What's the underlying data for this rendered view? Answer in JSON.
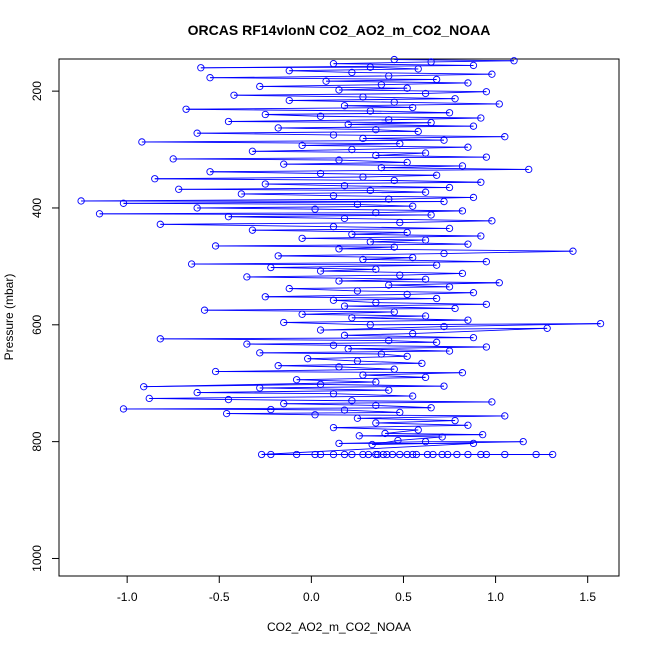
{
  "chart_data": {
    "type": "scatter",
    "style": "points-connected-by-lines",
    "title": "ORCAS RF14vlonN CO2_AO2_m_CO2_NOAA",
    "xlabel": "CO2_AO2_m_CO2_NOAA",
    "ylabel": "Pressure (mbar)",
    "xlim": [
      -1.37,
      1.67
    ],
    "ylim": [
      1030,
      145
    ],
    "y_reversed": true,
    "x_ticks": [
      -1.0,
      -0.5,
      0.0,
      0.5,
      1.0,
      1.5
    ],
    "x_tick_labels": [
      "-1.0",
      "-0.5",
      "0.0",
      "0.5",
      "1.0",
      "1.5"
    ],
    "y_ticks": [
      200,
      400,
      600,
      800,
      1000
    ],
    "y_tick_labels": [
      "200",
      "400",
      "600",
      "800",
      "1000"
    ],
    "grid": false,
    "legend": "none",
    "color": "#0000ff",
    "marker": "open-circle",
    "series": [
      {
        "points": [
          [
            0.35,
            822
          ],
          [
            0.52,
            822
          ],
          [
            0.18,
            822
          ],
          [
            0.71,
            822
          ],
          [
            0.44,
            822
          ],
          [
            0.92,
            822
          ],
          [
            0.05,
            822
          ],
          [
            0.63,
            822
          ],
          [
            0.28,
            822
          ],
          [
            1.05,
            822
          ],
          [
            -0.22,
            822
          ],
          [
            0.39,
            822
          ],
          [
            0.85,
            822
          ],
          [
            0.12,
            822
          ],
          [
            0.57,
            822
          ],
          [
            1.22,
            822
          ],
          [
            0.31,
            822
          ],
          [
            0.74,
            822
          ],
          [
            -0.08,
            822
          ],
          [
            0.48,
            822
          ],
          [
            0.95,
            822
          ],
          [
            0.22,
            822
          ],
          [
            0.66,
            822
          ],
          [
            1.31,
            822
          ],
          [
            0.41,
            822
          ],
          [
            0.02,
            822
          ],
          [
            0.79,
            822
          ],
          [
            0.36,
            822
          ],
          [
            0.55,
            822
          ],
          [
            -0.27,
            822
          ],
          [
            0.88,
            803
          ],
          [
            0.15,
            803
          ],
          [
            0.62,
            800
          ],
          [
            1.15,
            800
          ],
          [
            0.33,
            805
          ],
          [
            0.47,
            798
          ],
          [
            0.71,
            792
          ],
          [
            0.26,
            790
          ],
          [
            0.93,
            788
          ],
          [
            0.4,
            786
          ],
          [
            0.58,
            780
          ],
          [
            0.12,
            776
          ],
          [
            0.85,
            772
          ],
          [
            0.35,
            768
          ],
          [
            0.78,
            764
          ],
          [
            0.25,
            760
          ],
          [
            1.05,
            756
          ],
          [
            0.02,
            754
          ],
          [
            -0.46,
            752
          ],
          [
            0.48,
            750
          ],
          [
            0.18,
            746
          ],
          [
            -0.22,
            745
          ],
          [
            -1.02,
            744
          ],
          [
            0.65,
            742
          ],
          [
            0.35,
            738
          ],
          [
            -0.15,
            735
          ],
          [
            0.98,
            732
          ],
          [
            0.22,
            730
          ],
          [
            -0.45,
            728
          ],
          [
            -0.88,
            726
          ],
          [
            0.55,
            722
          ],
          [
            0.12,
            718
          ],
          [
            -0.62,
            716
          ],
          [
            0.42,
            712
          ],
          [
            -0.28,
            708
          ],
          [
            0.72,
            705
          ],
          [
            0.05,
            702
          ],
          [
            -0.91,
            706
          ],
          [
            0.35,
            698
          ],
          [
            -0.08,
            694
          ],
          [
            0.62,
            690
          ],
          [
            0.28,
            686
          ],
          [
            0.82,
            682
          ],
          [
            -0.52,
            680
          ],
          [
            0.45,
            676
          ],
          [
            0.15,
            672
          ],
          [
            -0.18,
            670
          ],
          [
            0.6,
            666
          ],
          [
            0.25,
            662
          ],
          [
            -0.02,
            658
          ],
          [
            0.52,
            654
          ],
          [
            0.38,
            650
          ],
          [
            -0.28,
            648
          ],
          [
            0.75,
            645
          ],
          [
            0.2,
            641
          ],
          [
            0.95,
            638
          ],
          [
            0.12,
            635
          ],
          [
            -0.35,
            633
          ],
          [
            0.68,
            630
          ],
          [
            0.42,
            627
          ],
          [
            -0.82,
            624
          ],
          [
            0.88,
            622
          ],
          [
            0.18,
            618
          ],
          [
            0.55,
            615
          ],
          [
            1.28,
            606
          ],
          [
            0.05,
            609
          ],
          [
            0.72,
            603
          ],
          [
            1.57,
            598
          ],
          [
            0.32,
            600
          ],
          [
            -0.15,
            596
          ],
          [
            0.85,
            592
          ],
          [
            0.22,
            588
          ],
          [
            0.62,
            585
          ],
          [
            -0.05,
            582
          ],
          [
            0.45,
            578
          ],
          [
            -0.58,
            575
          ],
          [
            0.78,
            572
          ],
          [
            0.18,
            568
          ],
          [
            0.95,
            565
          ],
          [
            0.35,
            562
          ],
          [
            0.12,
            558
          ],
          [
            0.68,
            555
          ],
          [
            -0.25,
            552
          ],
          [
            0.52,
            548
          ],
          [
            0.88,
            545
          ],
          [
            0.25,
            542
          ],
          [
            -0.12,
            538
          ],
          [
            0.75,
            535
          ],
          [
            0.42,
            532
          ],
          [
            1.02,
            528
          ],
          [
            0.15,
            525
          ],
          [
            0.62,
            522
          ],
          [
            -0.35,
            518
          ],
          [
            0.48,
            515
          ],
          [
            0.82,
            512
          ],
          [
            0.05,
            508
          ],
          [
            0.35,
            505
          ],
          [
            -0.22,
            502
          ],
          [
            0.68,
            498
          ],
          [
            -0.65,
            496
          ],
          [
            0.95,
            492
          ],
          [
            0.28,
            488
          ],
          [
            0.55,
            485
          ],
          [
            -0.18,
            482
          ],
          [
            0.72,
            478
          ],
          [
            1.42,
            474
          ],
          [
            0.15,
            470
          ],
          [
            0.45,
            467
          ],
          [
            -0.52,
            465
          ],
          [
            0.85,
            462
          ],
          [
            0.32,
            458
          ],
          [
            0.62,
            455
          ],
          [
            -0.05,
            452
          ],
          [
            0.92,
            448
          ],
          [
            0.22,
            445
          ],
          [
            0.52,
            442
          ],
          [
            -0.32,
            438
          ],
          [
            0.75,
            435
          ],
          [
            0.12,
            432
          ],
          [
            -0.82,
            428
          ],
          [
            0.48,
            425
          ],
          [
            0.98,
            422
          ],
          [
            0.18,
            418
          ],
          [
            -0.45,
            415
          ],
          [
            0.65,
            412
          ],
          [
            -1.15,
            410
          ],
          [
            0.35,
            408
          ],
          [
            0.82,
            405
          ],
          [
            0.02,
            402
          ],
          [
            -0.62,
            400
          ],
          [
            0.55,
            397
          ],
          [
            0.25,
            394
          ],
          [
            -1.02,
            392
          ],
          [
            0.72,
            389
          ],
          [
            -1.25,
            388
          ],
          [
            0.42,
            385
          ],
          [
            0.88,
            382
          ],
          [
            0.12,
            379
          ],
          [
            -0.38,
            376
          ],
          [
            0.62,
            373
          ],
          [
            0.32,
            370
          ],
          [
            -0.72,
            368
          ],
          [
            0.75,
            365
          ],
          [
            0.18,
            362
          ],
          [
            -0.25,
            359
          ],
          [
            0.92,
            356
          ],
          [
            0.45,
            353
          ],
          [
            -0.85,
            350
          ],
          [
            0.28,
            347
          ],
          [
            0.68,
            344
          ],
          [
            0.05,
            341
          ],
          [
            -0.55,
            338
          ],
          [
            1.18,
            334
          ],
          [
            0.38,
            331
          ],
          [
            0.82,
            328
          ],
          [
            -0.15,
            325
          ],
          [
            0.52,
            322
          ],
          [
            0.15,
            318
          ],
          [
            -0.75,
            316
          ],
          [
            0.95,
            313
          ],
          [
            0.35,
            310
          ],
          [
            0.62,
            306
          ],
          [
            -0.32,
            303
          ],
          [
            0.22,
            300
          ],
          [
            0.85,
            296
          ],
          [
            -0.05,
            293
          ],
          [
            0.48,
            290
          ],
          [
            -0.92,
            287
          ],
          [
            0.72,
            284
          ],
          [
            0.28,
            281
          ],
          [
            1.05,
            278
          ],
          [
            0.12,
            275
          ],
          [
            -0.62,
            272
          ],
          [
            0.58,
            269
          ],
          [
            0.35,
            266
          ],
          [
            -0.18,
            263
          ],
          [
            0.88,
            260
          ],
          [
            0.2,
            257
          ],
          [
            0.65,
            254
          ],
          [
            -0.45,
            252
          ],
          [
            0.42,
            249
          ],
          [
            0.92,
            246
          ],
          [
            0.05,
            243
          ],
          [
            -0.25,
            240
          ],
          [
            0.75,
            237
          ],
          [
            0.32,
            234
          ],
          [
            -0.68,
            231
          ],
          [
            0.55,
            228
          ],
          [
            0.18,
            225
          ],
          [
            1.02,
            222
          ],
          [
            0.45,
            219
          ],
          [
            -0.12,
            216
          ],
          [
            0.78,
            213
          ],
          [
            0.28,
            210
          ],
          [
            -0.42,
            207
          ],
          [
            0.62,
            204
          ],
          [
            0.95,
            201
          ],
          [
            0.15,
            198
          ],
          [
            0.52,
            195
          ],
          [
            -0.28,
            192
          ],
          [
            0.38,
            189
          ],
          [
            0.85,
            186
          ],
          [
            0.08,
            183
          ],
          [
            0.68,
            180
          ],
          [
            -0.55,
            177
          ],
          [
            0.42,
            174
          ],
          [
            0.98,
            171
          ],
          [
            0.22,
            168
          ],
          [
            -0.12,
            165
          ],
          [
            0.58,
            162
          ],
          [
            0.32,
            159
          ],
          [
            -0.6,
            160
          ],
          [
            0.88,
            156
          ],
          [
            0.12,
            153
          ],
          [
            0.65,
            150
          ],
          [
            1.1,
            148
          ],
          [
            0.45,
            146
          ]
        ]
      }
    ]
  }
}
